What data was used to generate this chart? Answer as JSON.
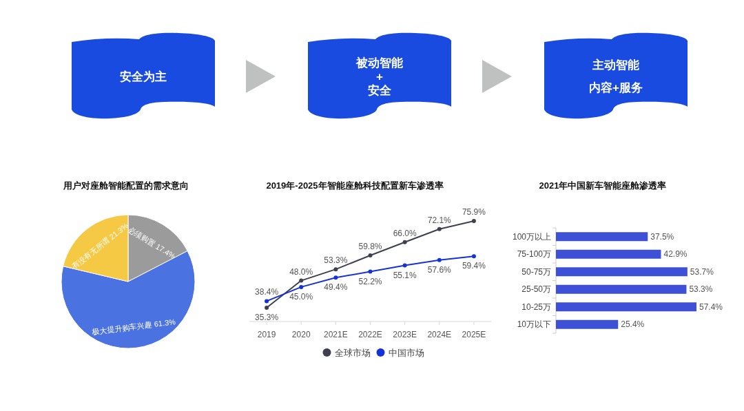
{
  "chart_data": [
    {
      "type": "other",
      "annotations": [
        "安全为主"
      ]
    },
    {
      "type": "other",
      "annotations": [
        "被动智能",
        "+",
        "安全"
      ]
    },
    {
      "type": "other",
      "annotations": [
        "主动智能",
        "内容+服务"
      ]
    },
    {
      "type": "pie",
      "title": "用户对座舱智能配置的需求意向",
      "categories": [
        "必须购置",
        "极大提升购车兴趣",
        "有没有无所谓"
      ],
      "values": [
        17.4,
        61.3,
        21.3
      ],
      "value_labels": [
        "17.4%",
        "61.3%",
        "21.3%"
      ],
      "colors": [
        "#9b9b9b",
        "#4a72e0",
        "#f6c944"
      ]
    },
    {
      "type": "line",
      "title": "2019年-2025年智能座舱科技配置新车渗透率",
      "categories": [
        "2019",
        "2020",
        "2021E",
        "2022E",
        "2023E",
        "2024E",
        "2025E"
      ],
      "series": [
        {
          "name": "全球市场",
          "color": "#3e3f4f",
          "values": [
            35.3,
            48.0,
            53.3,
            59.8,
            66.0,
            72.1,
            75.9
          ],
          "value_labels": [
            "35.3%",
            "48.0%",
            "53.3%",
            "59.8%",
            "66.0%",
            "72.1%",
            "75.9%"
          ]
        },
        {
          "name": "中国市场",
          "color": "#1432d8",
          "values": [
            38.4,
            45.0,
            49.4,
            52.2,
            55.1,
            57.6,
            59.4
          ],
          "value_labels": [
            "38.4%",
            "45.0%",
            "49.4%",
            "52.2%",
            "55.1%",
            "57.6%",
            "59.4%"
          ]
        }
      ],
      "legend": "bottom",
      "marker": "circle"
    },
    {
      "type": "bar",
      "orientation": "horizontal",
      "title": "2021年中国新车智能座舱渗透率",
      "categories": [
        "100万以上",
        "75-100万",
        "50-75万",
        "25-50万",
        "10-25万",
        "10万以下"
      ],
      "values": [
        37.5,
        42.9,
        53.7,
        53.3,
        57.4,
        25.4
      ],
      "value_labels": [
        "37.5%",
        "42.9%",
        "53.7%",
        "53.3%",
        "57.4%",
        "25.4%"
      ],
      "color": "#3d50d6"
    }
  ]
}
